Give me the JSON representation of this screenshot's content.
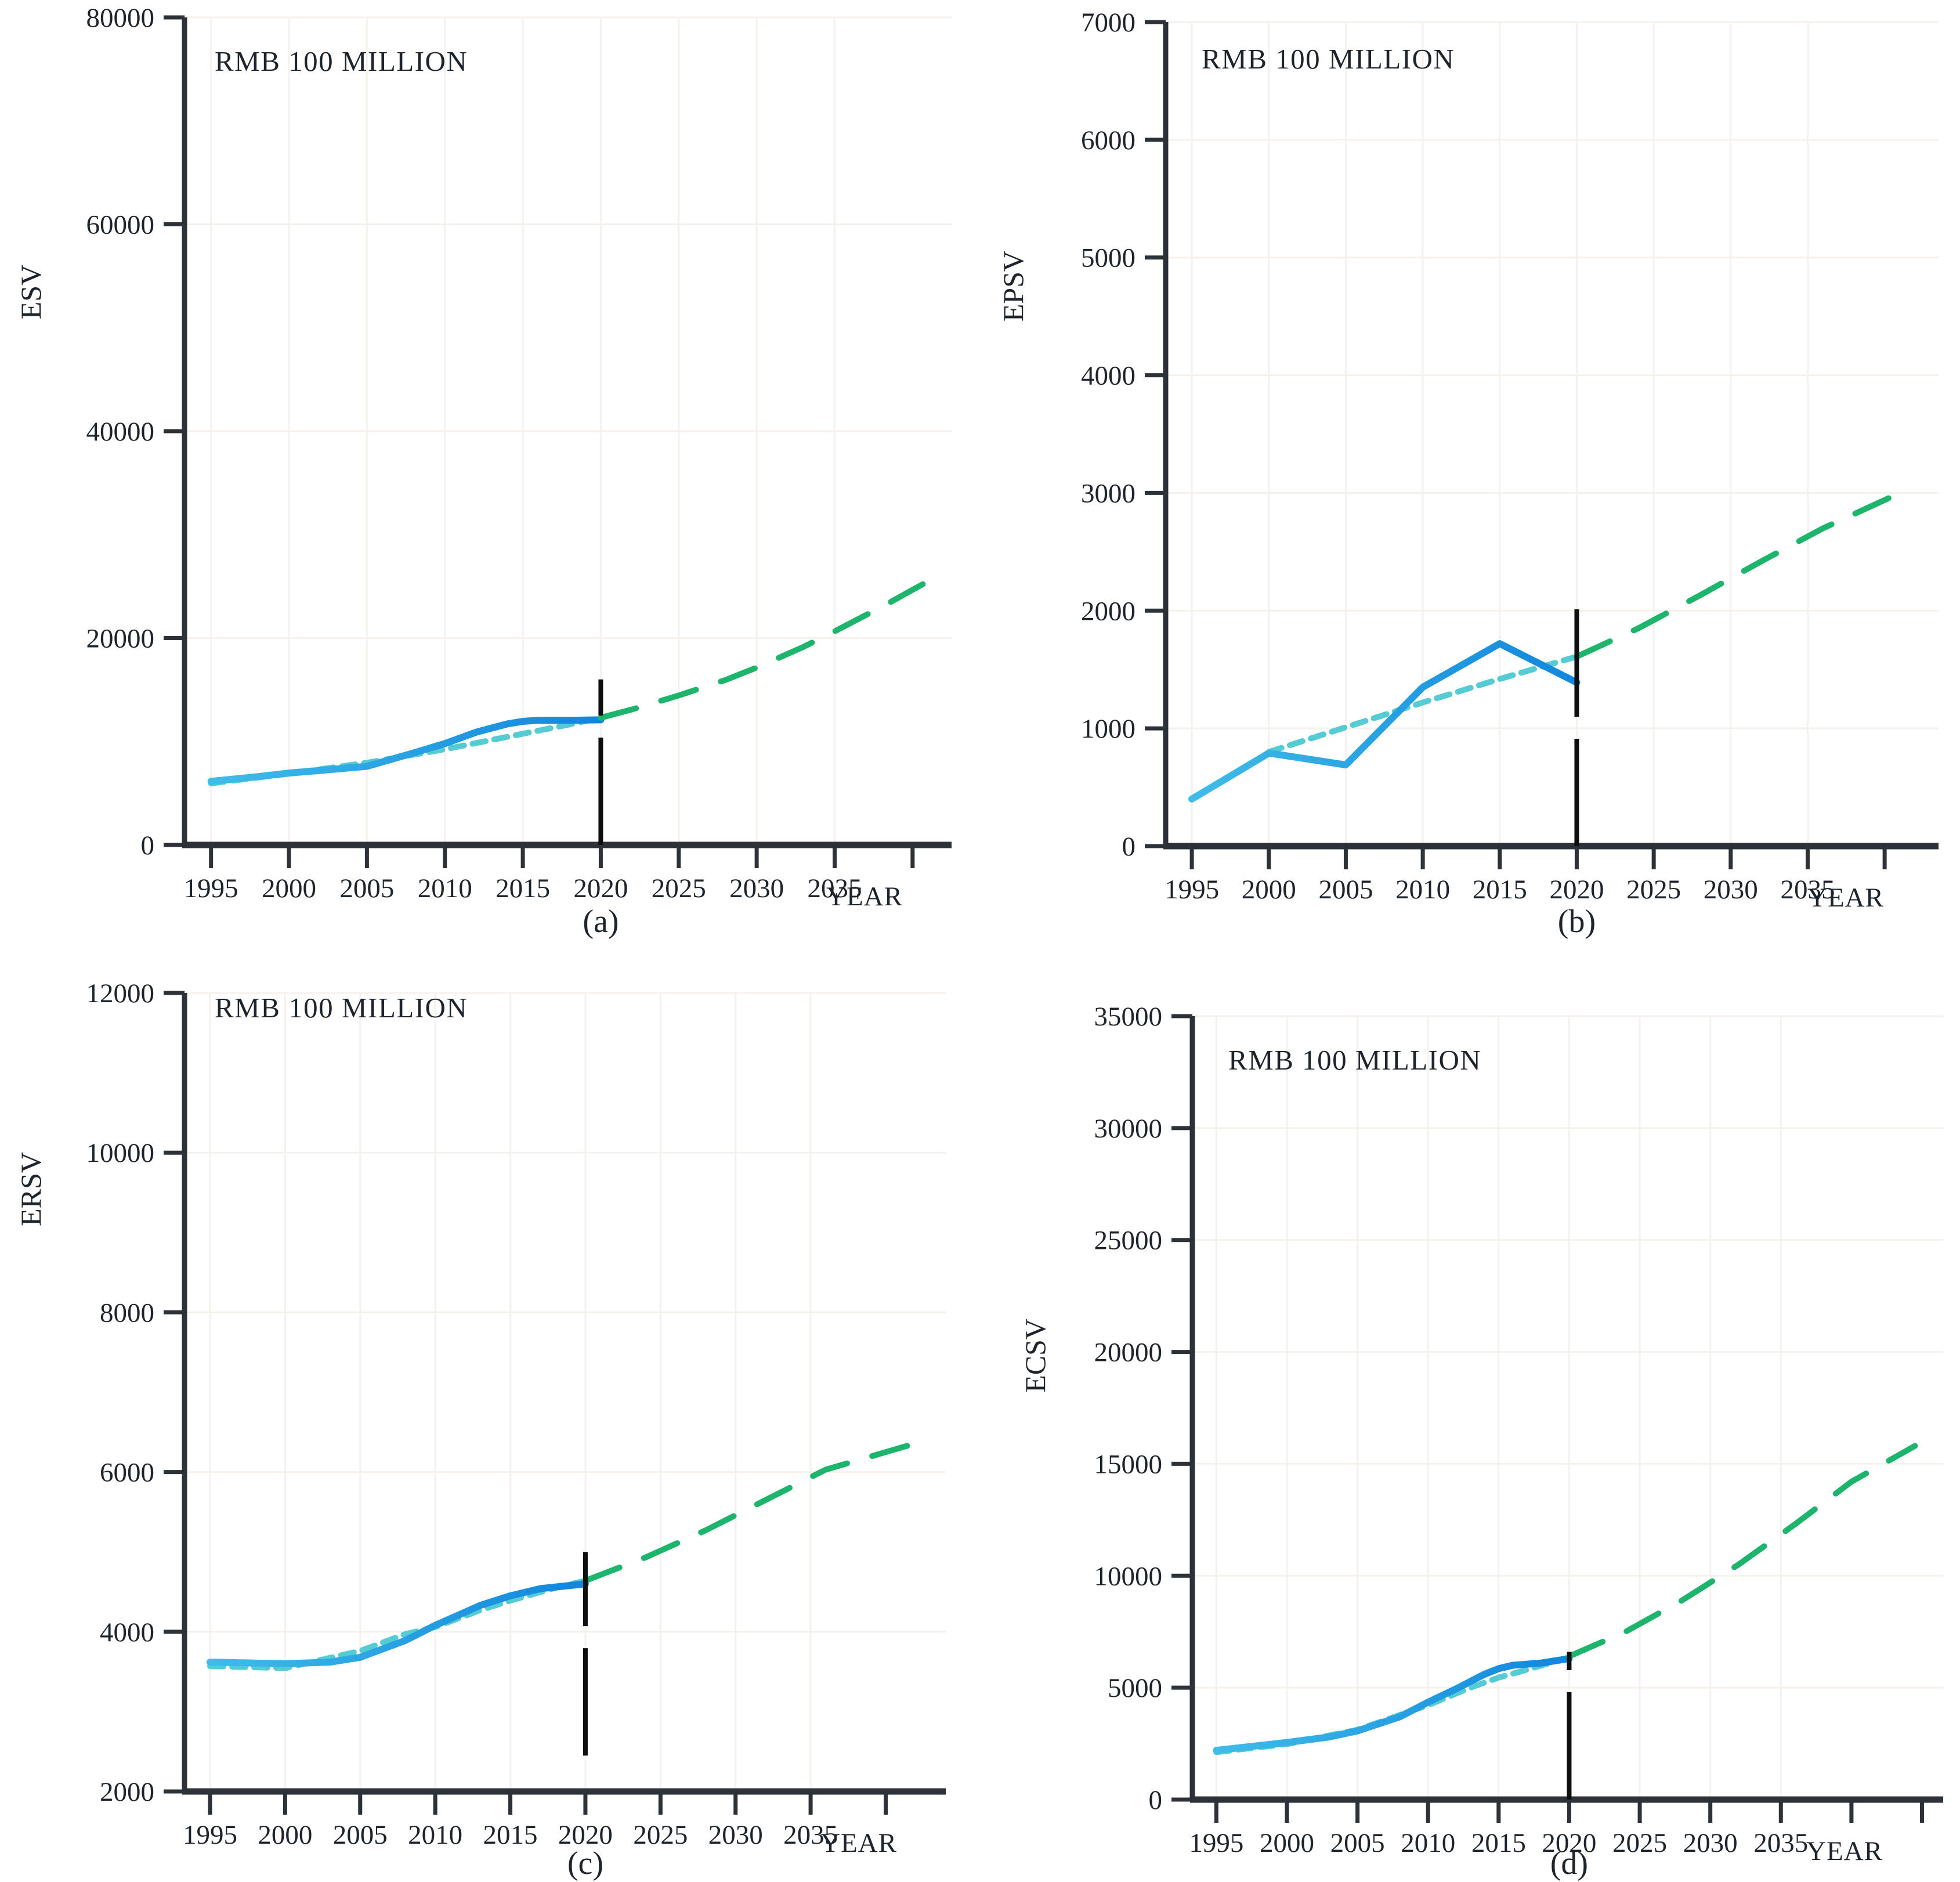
{
  "figure": {
    "unit_label": "RMB 100 MILLION",
    "x_axis_label": "YEAR",
    "x_ticks_labeled": [
      1995,
      2000,
      2005,
      2010,
      2015,
      2020,
      2025,
      2030,
      2035
    ],
    "colors": {
      "observed_start": "#3fbce8",
      "observed_end": "#1186dd",
      "fitted": "#55cbd3",
      "forecast": "#1db56c",
      "vline": "#0c0e10",
      "axis": "#2c3237",
      "text": "#1e242b",
      "grid": "#f5f2ee"
    }
  },
  "chart_data": [
    {
      "type": "line",
      "id": "a",
      "caption": "(a)",
      "title": "RMB 100 MILLION",
      "xlabel": "YEAR",
      "ylabel": "ESV",
      "ylim": [
        0,
        80000
      ],
      "y_ticks": [
        0,
        20000,
        40000,
        60000,
        80000
      ],
      "x_ticks": [
        1995,
        2000,
        2005,
        2010,
        2015,
        2020,
        2025,
        2030,
        2035
      ],
      "x_unlabeled_ticks": [
        2040
      ],
      "xlim": [
        1993.3,
        2042.5
      ],
      "forecast_start_year": 2020,
      "series": [
        {
          "name": "observed-historical",
          "style": "solid",
          "x": [
            1995,
            1998,
            2000,
            2002,
            2005,
            2008,
            2010,
            2012,
            2014,
            2015,
            2016,
            2018,
            2020
          ],
          "y": [
            6150,
            6600,
            6950,
            7200,
            7600,
            8900,
            9800,
            10900,
            11700,
            11950,
            12050,
            12050,
            12100
          ]
        },
        {
          "name": "fitted-trend",
          "style": "short-dash",
          "x": [
            1995,
            2000,
            2005,
            2010,
            2015,
            2018,
            2020
          ],
          "y": [
            5950,
            6900,
            7950,
            9250,
            10750,
            11650,
            12300
          ]
        },
        {
          "name": "forecast",
          "style": "long-dash",
          "x": [
            2020,
            2022,
            2025,
            2028,
            2030,
            2033,
            2035,
            2038,
            2041
          ],
          "y": [
            12300,
            13100,
            14450,
            15950,
            17150,
            19150,
            20650,
            23000,
            25500
          ]
        }
      ],
      "vline": {
        "x": 2020,
        "y_from": 0,
        "y_to": 16000
      }
    },
    {
      "type": "line",
      "id": "b",
      "caption": "(b)",
      "title": "RMB 100 MILLION",
      "xlabel": "YEAR",
      "ylabel": "EPSV",
      "ylim": [
        0,
        7000
      ],
      "y_ticks": [
        0,
        1000,
        2000,
        3000,
        4000,
        5000,
        6000,
        7000
      ],
      "x_ticks": [
        1995,
        2000,
        2005,
        2010,
        2015,
        2020,
        2025,
        2030,
        2035
      ],
      "x_unlabeled_ticks": [
        2040
      ],
      "xlim": [
        1993.3,
        2043.5
      ],
      "forecast_start_year": 2020,
      "series": [
        {
          "name": "observed-historical",
          "style": "solid",
          "x": [
            1995,
            2000,
            2005,
            2010,
            2015,
            2020
          ],
          "y": [
            400,
            790,
            690,
            1350,
            1720,
            1390
          ]
        },
        {
          "name": "fitted-trend",
          "style": "short-dash",
          "x": [
            2000,
            2005,
            2010,
            2015,
            2020
          ],
          "y": [
            800,
            1010,
            1220,
            1420,
            1610
          ]
        },
        {
          "name": "forecast",
          "style": "long-dash",
          "x": [
            2020,
            2024,
            2028,
            2032,
            2036,
            2041
          ],
          "y": [
            1610,
            1850,
            2130,
            2420,
            2700,
            3000
          ]
        }
      ],
      "vline": {
        "x": 2020,
        "y_from": 0,
        "y_to": 2100
      }
    },
    {
      "type": "line",
      "id": "c",
      "caption": "(c)",
      "title": "RMB 100 MILLION",
      "xlabel": "YEAR",
      "ylabel": "ERSV",
      "ylim": [
        2000,
        12000
      ],
      "y_ticks": [
        2000,
        4000,
        6000,
        8000,
        10000,
        12000
      ],
      "x_ticks": [
        1995,
        2000,
        2005,
        2010,
        2015,
        2020,
        2025,
        2030,
        2035
      ],
      "x_unlabeled_ticks": [
        2040
      ],
      "xlim": [
        1993.3,
        2044
      ],
      "forecast_start_year": 2020,
      "series": [
        {
          "name": "observed-historical",
          "style": "solid",
          "x": [
            1995,
            2000,
            2003,
            2005,
            2008,
            2010,
            2013,
            2015,
            2017,
            2020
          ],
          "y": [
            3620,
            3600,
            3620,
            3680,
            3890,
            4080,
            4330,
            4450,
            4540,
            4600
          ]
        },
        {
          "name": "fitted-trend",
          "style": "short-dash",
          "x": [
            1995,
            2000,
            2005,
            2008,
            2010,
            2013,
            2015,
            2018,
            2020
          ],
          "y": [
            3570,
            3545,
            3760,
            3970,
            4060,
            4270,
            4390,
            4550,
            4640
          ]
        },
        {
          "name": "forecast",
          "style": "long-dash",
          "x": [
            2020,
            2024,
            2028,
            2032,
            2036,
            2042
          ],
          "y": [
            4640,
            4930,
            5270,
            5650,
            6030,
            6360
          ]
        }
      ],
      "vline": {
        "x": 2020,
        "y_from": 2450,
        "y_to": 5000
      }
    },
    {
      "type": "line",
      "id": "d",
      "caption": "(d)",
      "title": "RMB 100 MILLION",
      "xlabel": "YEAR",
      "ylabel": "ECSV",
      "ylim": [
        0,
        35000
      ],
      "y_ticks": [
        0,
        5000,
        10000,
        15000,
        20000,
        25000,
        30000,
        35000
      ],
      "x_ticks": [
        1995,
        2000,
        2005,
        2010,
        2015,
        2020,
        2025,
        2030,
        2035
      ],
      "x_unlabeled_ticks": [
        2040,
        2045
      ],
      "xlim": [
        1993.3,
        2046.5
      ],
      "forecast_start_year": 2020,
      "series": [
        {
          "name": "observed-historical",
          "style": "solid",
          "x": [
            1995,
            2000,
            2003,
            2005,
            2008,
            2010,
            2012,
            2014,
            2015,
            2016,
            2018,
            2020
          ],
          "y": [
            2200,
            2550,
            2800,
            3070,
            3700,
            4350,
            4950,
            5600,
            5850,
            6000,
            6100,
            6300
          ]
        },
        {
          "name": "fitted-trend",
          "style": "short-dash",
          "x": [
            1995,
            2000,
            2005,
            2010,
            2013,
            2015,
            2017,
            2020
          ],
          "y": [
            2120,
            2480,
            3120,
            4220,
            5000,
            5450,
            5800,
            6350
          ]
        },
        {
          "name": "forecast",
          "style": "long-dash",
          "x": [
            2020,
            2024,
            2028,
            2032,
            2036,
            2040,
            2044.5
          ],
          "y": [
            6400,
            7500,
            8900,
            10500,
            12300,
            14200,
            15800
          ]
        }
      ],
      "vline": {
        "x": 2020,
        "y_from": 0,
        "y_to": 6600
      }
    }
  ]
}
